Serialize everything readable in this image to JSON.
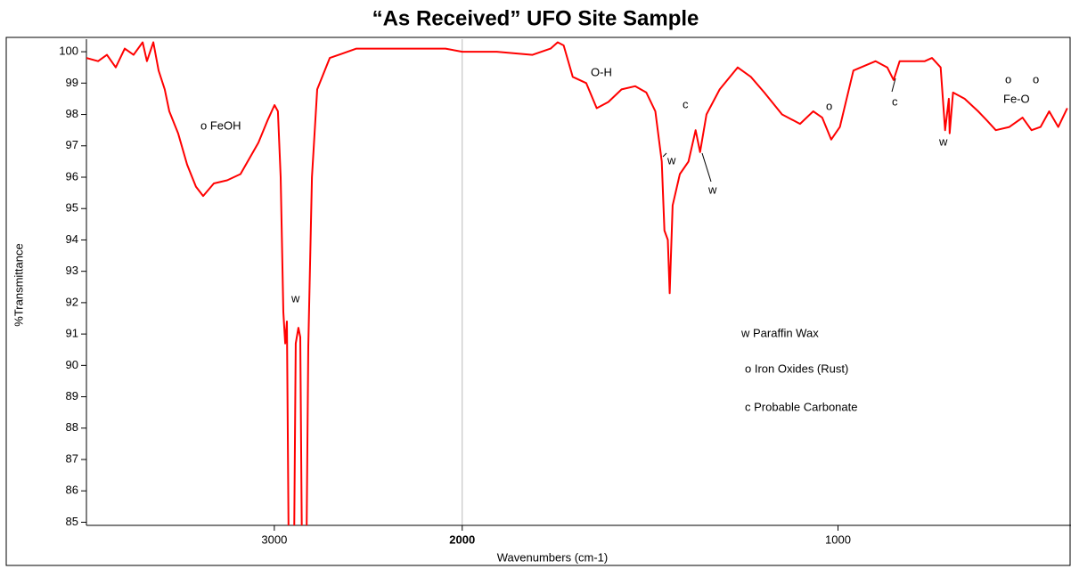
{
  "chart_data": {
    "type": "line",
    "title": "“As Received” UFO Site Sample",
    "xlabel": "Wavenumbers (cm-1)",
    "ylabel": "%Transmittance",
    "xlim": [
      4000,
      380
    ],
    "x_break": 2000,
    "x_break_ratio": 2,
    "ylim": [
      84.9,
      100.4
    ],
    "xticks": [
      3000,
      2000,
      1000
    ],
    "yticks": [
      85,
      86,
      87,
      88,
      89,
      90,
      91,
      92,
      93,
      94,
      95,
      96,
      97,
      98,
      99,
      100
    ],
    "vline": 2000,
    "series": [
      {
        "name": "%Transmittance",
        "color": "#ff0000",
        "x": [
          4000,
          3938,
          3891,
          3844,
          3796,
          3749,
          3701,
          3678,
          3644,
          3616,
          3583,
          3559,
          3512,
          3464,
          3417,
          3379,
          3322,
          3251,
          3180,
          3085,
          3037,
          2999,
          2981,
          2966,
          2952,
          2942,
          2933,
          2924,
          2914,
          2895,
          2886,
          2872,
          2862,
          2853,
          2829,
          2819,
          2800,
          2772,
          2705,
          2563,
          2326,
          2089,
          2000,
          1908,
          1813,
          1765,
          1746,
          1730,
          1706,
          1670,
          1642,
          1611,
          1576,
          1540,
          1510,
          1486,
          1469,
          1462,
          1453,
          1448,
          1440,
          1421,
          1398,
          1379,
          1367,
          1350,
          1315,
          1267,
          1232,
          1196,
          1149,
          1101,
          1066,
          1042,
          1018,
          995,
          959,
          900,
          869,
          852,
          836,
          769,
          750,
          727,
          715,
          705,
          703,
          694,
          663,
          627,
          603,
          580,
          544,
          509,
          485,
          461,
          438,
          414,
          390
        ],
        "values": [
          99.8,
          99.7,
          99.9,
          99.5,
          100.1,
          99.9,
          100.3,
          99.7,
          100.3,
          99.4,
          98.8,
          98.1,
          97.4,
          96.4,
          95.7,
          95.4,
          95.8,
          95.9,
          96.1,
          97.1,
          97.8,
          98.3,
          98.1,
          96.0,
          91.7,
          90.7,
          91.4,
          84.5,
          84.0,
          84.0,
          90.7,
          91.2,
          90.9,
          84.0,
          84.0,
          90.6,
          96.0,
          98.8,
          99.8,
          100.1,
          100.1,
          100.1,
          100.0,
          100.0,
          99.9,
          100.1,
          100.3,
          100.2,
          99.2,
          99.0,
          98.2,
          98.4,
          98.8,
          98.9,
          98.7,
          98.1,
          96.5,
          94.3,
          94.0,
          92.3,
          95.1,
          96.1,
          96.5,
          97.5,
          96.8,
          98.0,
          98.8,
          99.5,
          99.2,
          98.7,
          98.0,
          97.7,
          98.1,
          97.9,
          97.2,
          97.6,
          99.4,
          99.7,
          99.5,
          99.1,
          99.7,
          99.7,
          99.8,
          99.5,
          97.5,
          98.5,
          97.4,
          98.7,
          98.5,
          98.1,
          97.8,
          97.5,
          97.6,
          97.9,
          97.5,
          97.6,
          98.1,
          97.6,
          98.2
        ]
      }
    ],
    "annotations": [
      "o FeOH",
      "w",
      "O-H",
      "c",
      "w",
      "w",
      "o",
      "c",
      "w",
      "o",
      "o",
      "Fe-O",
      "w Paraffin Wax",
      "o Iron Oxides (Rust)",
      "c Probable Carbonate"
    ]
  }
}
